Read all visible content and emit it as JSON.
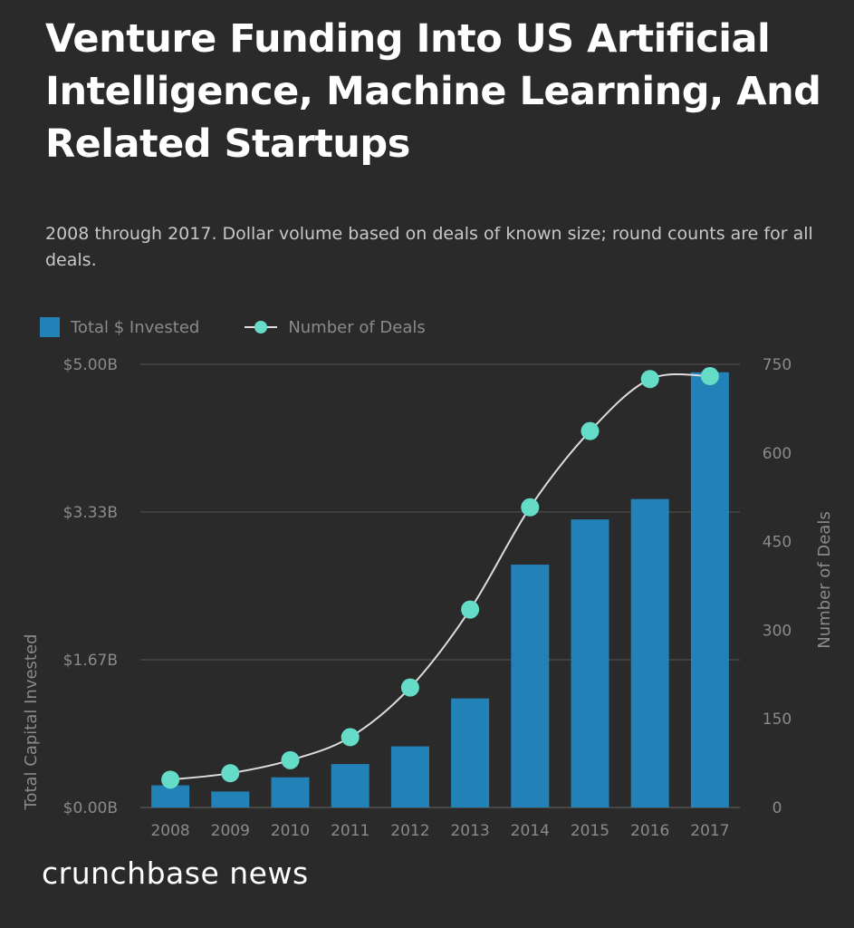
{
  "title": "Venture Funding Into US Artificial Intelligence, Machine Learning, And Related Startups",
  "subtitle": "2008 through 2017. Dollar volume based on deals of known size; round counts are for all deals.",
  "brand": "crunchbase news",
  "colors": {
    "background": "#2a2a2a",
    "bar": "#2281b6",
    "line": "#dddddd",
    "marker": "#64dcc8",
    "grid": "#555555",
    "axis_text": "#8a8a8a"
  },
  "chart_data": {
    "type": "bar+line",
    "categories": [
      "2008",
      "2009",
      "2010",
      "2011",
      "2012",
      "2013",
      "2014",
      "2015",
      "2016",
      "2017"
    ],
    "series": [
      {
        "name": "Total $ Invested",
        "type": "bar",
        "axis": "left",
        "unit": "USD billions",
        "values": [
          0.25,
          0.18,
          0.34,
          0.49,
          0.69,
          1.23,
          2.74,
          3.25,
          3.48,
          4.91
        ]
      },
      {
        "name": "Number of Deals",
        "type": "line",
        "axis": "right",
        "values": [
          47,
          58,
          80,
          119,
          203,
          335,
          508,
          637,
          725,
          730
        ]
      }
    ],
    "y_left": {
      "label": "Total Capital Invested",
      "range": [
        0,
        5
      ],
      "ticks": [
        0,
        1.667,
        3.333,
        5
      ],
      "tick_labels": [
        "$0.00B",
        "$1.67B",
        "$3.33B",
        "$5.00B"
      ]
    },
    "y_right": {
      "label": "Number of Deals",
      "range": [
        0,
        750
      ],
      "ticks": [
        0,
        150,
        300,
        450,
        600,
        750
      ],
      "tick_labels": [
        "0",
        "150",
        "300",
        "450",
        "600",
        "750"
      ]
    },
    "grid": true,
    "legend": "top-left"
  }
}
